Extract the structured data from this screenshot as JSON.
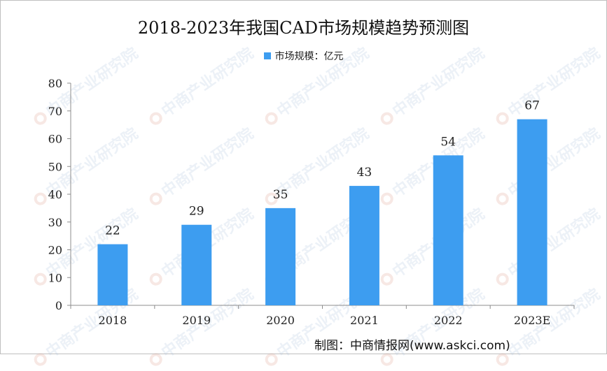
{
  "chart_data": {
    "type": "bar",
    "title": "2018-2023年我国CAD市场规模趋势预测图",
    "categories": [
      "2018",
      "2019",
      "2020",
      "2021",
      "2022",
      "2023E"
    ],
    "series": [
      {
        "name": "市场规模：亿元",
        "values": [
          22,
          29,
          35,
          43,
          54,
          67
        ],
        "color": "#3d9df0"
      }
    ],
    "data_labels": [
      "22",
      "29",
      "35",
      "43",
      "54",
      "67"
    ],
    "ylim": [
      0,
      80
    ],
    "yticks": [
      0,
      10,
      20,
      30,
      40,
      50,
      60,
      70,
      80
    ],
    "xlabel": "",
    "ylabel": "",
    "grid": false,
    "legend_position": "top-center"
  },
  "footer": {
    "source": "制图：中商情报网(www.askci.com)"
  },
  "watermark": {
    "text": "中商产业研究院"
  }
}
